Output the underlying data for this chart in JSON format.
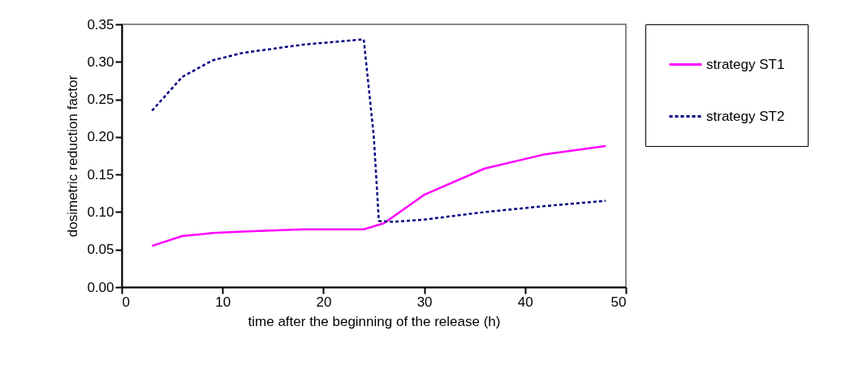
{
  "chart_data": {
    "type": "line",
    "xlabel": "time after the beginning of the release (h)",
    "ylabel": "dosimetric reduction factor",
    "xlim": [
      0,
      50
    ],
    "xticks": [
      0,
      10,
      20,
      30,
      40,
      50
    ],
    "ylim": [
      0,
      0.35
    ],
    "yticks": [
      {
        "value": 0,
        "label": "0.00"
      },
      {
        "value": 0.05,
        "label": "0.05"
      },
      {
        "value": 0.1,
        "label": "0.10"
      },
      {
        "value": 0.15,
        "label": "0.15"
      },
      {
        "value": 0.2,
        "label": "0.20"
      },
      {
        "value": 0.25,
        "label": "0.25"
      },
      {
        "value": 0.3,
        "label": "0.30"
      },
      {
        "value": 0.35,
        "label": "0.35"
      }
    ],
    "grid": false,
    "legend": "right",
    "marker": "none",
    "series": [
      {
        "name": "strategy ST1",
        "color": "#ff00ff",
        "line_style": "solid",
        "x": [
          3,
          6,
          9,
          12,
          18,
          24,
          26,
          30,
          36,
          42,
          48
        ],
        "values": [
          0.055,
          0.068,
          0.072,
          0.074,
          0.077,
          0.077,
          0.085,
          0.123,
          0.158,
          0.177,
          0.188
        ]
      },
      {
        "name": "strategy ST2",
        "color": "#000080",
        "line_style": "dashed",
        "x": [
          3,
          6,
          9,
          12,
          18,
          24,
          25,
          25.5,
          27,
          30,
          36,
          42,
          48
        ],
        "values": [
          0.235,
          0.28,
          0.302,
          0.312,
          0.323,
          0.33,
          0.2,
          0.088,
          0.087,
          0.09,
          0.1,
          0.108,
          0.115
        ]
      }
    ]
  }
}
